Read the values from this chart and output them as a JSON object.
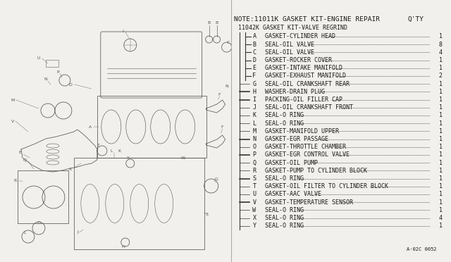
{
  "bg_color": "#f2f0ec",
  "diagram_bg": "#ffffff",
  "text_color": "#1a1a1a",
  "line_color": "#333333",
  "title_note": "NOTE:11011K GASKET KIT-ENGINE REPAIR",
  "subtitle": "11042K GASKET KIT-VALVE REGRIND",
  "qty_label": "Q'TY",
  "parts_code": "A·02C 0052",
  "items": [
    {
      "letter": "A",
      "description": "GASKET-CYLINDER HEAD",
      "qty": "1",
      "indent": 2,
      "line_style": "thin"
    },
    {
      "letter": "B",
      "description": "SEAL-OIL VALVE",
      "qty": "8",
      "indent": 2,
      "line_style": "thin"
    },
    {
      "letter": "C",
      "description": "SEAL-OIL VALVE",
      "qty": "4",
      "indent": 2,
      "line_style": "thin"
    },
    {
      "letter": "D",
      "description": "GASKET-ROCKER COVER",
      "qty": "1",
      "indent": 2,
      "line_style": "thin"
    },
    {
      "letter": "E",
      "description": "GASKET-INTAKE MANIFOLD",
      "qty": "1",
      "indent": 2,
      "line_style": "thin"
    },
    {
      "letter": "F",
      "description": "GASKET-EXHAUST MANIFOLD",
      "qty": "2",
      "indent": 2,
      "line_style": "thin"
    },
    {
      "letter": "G",
      "description": "SEAL-OIL CRANKSHAFT REAR",
      "qty": "1",
      "indent": 0,
      "line_style": "thin"
    },
    {
      "letter": "H",
      "description": "WASHER-DRAIN PLUG",
      "qty": "1",
      "indent": 0,
      "line_style": "medium"
    },
    {
      "letter": "I",
      "description": "PACKING-OIL FILLER CAP",
      "qty": "1",
      "indent": 0,
      "line_style": "medium"
    },
    {
      "letter": "J",
      "description": "SEAL-OIL CRANKSHAFT FRONT",
      "qty": "1",
      "indent": 0,
      "line_style": "thin"
    },
    {
      "letter": "K",
      "description": "SEAL-O RING",
      "qty": "1",
      "indent": 0,
      "line_style": "thin"
    },
    {
      "letter": "L",
      "description": "SEAL-O RING",
      "qty": "1",
      "indent": 0,
      "line_style": "thin"
    },
    {
      "letter": "M",
      "description": "GASKET-MANIFOLD UPPER",
      "qty": "1",
      "indent": 0,
      "line_style": "thin"
    },
    {
      "letter": "N",
      "description": "GASKET-EGR PASSAGE",
      "qty": "1",
      "indent": 0,
      "line_style": "medium"
    },
    {
      "letter": "O",
      "description": "GASKET-THROTTLE CHAMBER",
      "qty": "1",
      "indent": 0,
      "line_style": "thin"
    },
    {
      "letter": "P",
      "description": "GASKET-EGR CONTROL VALVE",
      "qty": "1",
      "indent": 0,
      "line_style": "medium"
    },
    {
      "letter": "Q",
      "description": "GASKET-OIL PUMP",
      "qty": "1",
      "indent": 0,
      "line_style": "thin"
    },
    {
      "letter": "R",
      "description": "GASKET-PUMP TO CYLINDER BLOCK",
      "qty": "1",
      "indent": 0,
      "line_style": "thin"
    },
    {
      "letter": "S",
      "description": "SEAL-O RING",
      "qty": "1",
      "indent": 0,
      "line_style": "medium"
    },
    {
      "letter": "T",
      "description": "GASKET-OIL FILTER TO CYLINDER BLOCK",
      "qty": "1",
      "indent": 0,
      "line_style": "thin"
    },
    {
      "letter": "U",
      "description": "GASKET-AAC VALVE",
      "qty": "1",
      "indent": 0,
      "line_style": "thin"
    },
    {
      "letter": "V",
      "description": "GASKET-TEMPERATURE SENSOR",
      "qty": "1",
      "indent": 0,
      "line_style": "medium"
    },
    {
      "letter": "W",
      "description": "SEAL-O RING",
      "qty": "1",
      "indent": 0,
      "line_style": "thin"
    },
    {
      "letter": "X",
      "description": "SEAL-O RING",
      "qty": "4",
      "indent": 0,
      "line_style": "thin"
    },
    {
      "letter": "Y",
      "description": "SEAL-O RING",
      "qty": "1",
      "indent": 0,
      "line_style": "thin"
    }
  ]
}
